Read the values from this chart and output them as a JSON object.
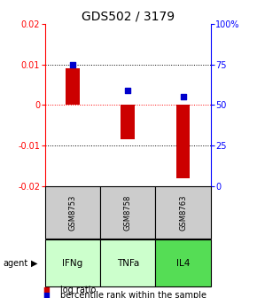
{
  "title": "GDS502 / 3179",
  "samples": [
    "GSM8753",
    "GSM8758",
    "GSM8763"
  ],
  "agents": [
    "IFNg",
    "TNFa",
    "IL4"
  ],
  "log_ratios": [
    0.009,
    -0.0085,
    -0.018
  ],
  "percentile_ranks": [
    75,
    59,
    55
  ],
  "ylim_left": [
    -0.02,
    0.02
  ],
  "ylim_right": [
    0,
    100
  ],
  "bar_color": "#cc0000",
  "dot_color": "#0000cc",
  "agent_colors": [
    "#ccffcc",
    "#ccffcc",
    "#55dd55"
  ],
  "sample_bg": "#cccccc",
  "title_fontsize": 10,
  "tick_fontsize": 7,
  "legend_fontsize": 7
}
